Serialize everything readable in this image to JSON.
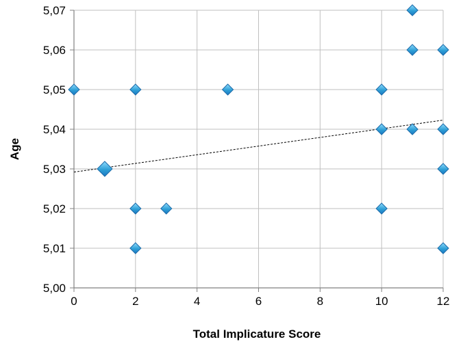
{
  "chart_data": {
    "type": "scatter",
    "title": "",
    "xlabel": "Total Implicature Score",
    "ylabel": "Age",
    "xlim": [
      0,
      12
    ],
    "ylim": [
      5.0,
      5.07
    ],
    "x_ticks": [
      0,
      2,
      4,
      6,
      8,
      10,
      12
    ],
    "x_tick_labels": [
      "0",
      "2",
      "4",
      "6",
      "8",
      "10",
      "12"
    ],
    "y_ticks": [
      5.0,
      5.01,
      5.02,
      5.03,
      5.04,
      5.05,
      5.06,
      5.07
    ],
    "y_tick_labels": [
      "5,00",
      "5,01",
      "5,02",
      "5,03",
      "5,04",
      "5,05",
      "5,06",
      "5,07"
    ],
    "grid": true,
    "legend": "none",
    "marker": "diamond",
    "marker_color": "#2e9fd6",
    "marker_edge_color": "#1c6aa8",
    "series": [
      {
        "points": [
          {
            "x": 0,
            "y": 5.05
          },
          {
            "x": 1,
            "y": 5.03
          },
          {
            "x": 2,
            "y": 5.05
          },
          {
            "x": 2,
            "y": 5.02
          },
          {
            "x": 2,
            "y": 5.01
          },
          {
            "x": 3,
            "y": 5.02
          },
          {
            "x": 5,
            "y": 5.05
          },
          {
            "x": 10,
            "y": 5.05
          },
          {
            "x": 10,
            "y": 5.04
          },
          {
            "x": 10,
            "y": 5.02
          },
          {
            "x": 11,
            "y": 5.07
          },
          {
            "x": 11,
            "y": 5.06
          },
          {
            "x": 11,
            "y": 5.04
          },
          {
            "x": 12,
            "y": 5.06
          },
          {
            "x": 12,
            "y": 5.04
          },
          {
            "x": 12,
            "y": 5.03
          },
          {
            "x": 12,
            "y": 5.01
          }
        ]
      }
    ],
    "trendline": {
      "type": "linear",
      "style": "dashed",
      "color": "#000000",
      "start": {
        "x": 0,
        "y": 5.0292
      },
      "end": {
        "x": 12,
        "y": 5.0423
      }
    }
  }
}
